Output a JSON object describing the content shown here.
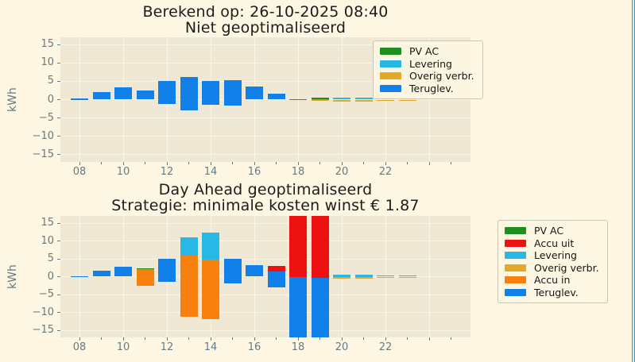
{
  "colors": {
    "figure_bg": "#fdf6e3",
    "axes_bg": "#eee8d5",
    "grid": "#fbf5e4",
    "tick_text": "#657b83",
    "title_text": "#1c1c1c",
    "window_border": "#4b93ad",
    "pv_ac": "#1e8e1e",
    "accu_uit": "#ee1111",
    "levering": "#29b8e6",
    "overig_verbr": "#e4a727",
    "accu_in": "#f8800f",
    "teruglev": "#1180e8"
  },
  "chart_data": [
    {
      "type": "bar",
      "title": "Berekend op: 26-10-2025 08:40",
      "subtitle": "Niet geoptimaliseerd",
      "ylabel": "kWh",
      "ylim": [
        -17,
        17
      ],
      "yticks": [
        "15",
        "10",
        "5",
        "0",
        "−5",
        "−10",
        "−15"
      ],
      "xtick_labels": [
        "08",
        "10",
        "12",
        "14",
        "16",
        "18",
        "20",
        "22"
      ],
      "grid": true,
      "legend_position": "upper-right-inside",
      "legend": [
        {
          "name": "PV AC",
          "color": "#1e8e1e"
        },
        {
          "name": "Levering",
          "color": "#29b8e6"
        },
        {
          "name": "Overig verbr.",
          "color": "#e4a727"
        },
        {
          "name": "Teruglev.",
          "color": "#1180e8"
        }
      ],
      "bars": [
        {
          "hour": 8,
          "segments": [
            [
              "Teruglev.",
              0,
              0.25
            ]
          ]
        },
        {
          "hour": 9,
          "segments": [
            [
              "Teruglev.",
              0,
              2.0
            ]
          ]
        },
        {
          "hour": 10,
          "segments": [
            [
              "Teruglev.",
              0,
              3.3
            ]
          ]
        },
        {
          "hour": 11,
          "segments": [
            [
              "Teruglev.",
              0,
              2.5
            ]
          ]
        },
        {
          "hour": 12,
          "segments": [
            [
              "Teruglev.",
              -1.3,
              5.0
            ]
          ]
        },
        {
          "hour": 13,
          "segments": [
            [
              "Teruglev.",
              -3.0,
              6.1
            ]
          ]
        },
        {
          "hour": 14,
          "segments": [
            [
              "Teruglev.",
              -1.5,
              5.0
            ]
          ]
        },
        {
          "hour": 15,
          "segments": [
            [
              "Teruglev.",
              -1.7,
              5.3
            ]
          ]
        },
        {
          "hour": 16,
          "segments": [
            [
              "Teruglev.",
              0,
              3.5
            ]
          ]
        },
        {
          "hour": 17,
          "segments": [
            [
              "Teruglev.",
              0,
              1.6
            ]
          ]
        },
        {
          "hour": 18,
          "segments": [
            [
              "Teruglev.",
              0,
              0.12
            ]
          ]
        },
        {
          "hour": 19,
          "segments": [
            [
              "Levering",
              0,
              0.3
            ],
            [
              "PV AC",
              0.3,
              0.5
            ],
            [
              "Overig verbr.",
              -0.2,
              0
            ]
          ]
        },
        {
          "hour": 20,
          "segments": [
            [
              "Levering",
              0,
              0.55
            ],
            [
              "Overig verbr.",
              -0.6,
              0
            ]
          ]
        },
        {
          "hour": 21,
          "segments": [
            [
              "Levering",
              0,
              0.55
            ],
            [
              "Overig verbr.",
              -0.6,
              0
            ]
          ]
        },
        {
          "hour": 22,
          "segments": [
            [
              "Levering",
              0,
              0.4
            ],
            [
              "Overig verbr.",
              -0.3,
              0
            ]
          ]
        },
        {
          "hour": 23,
          "segments": [
            [
              "Levering",
              0,
              0.35
            ],
            [
              "Overig verbr.",
              -0.3,
              0
            ]
          ]
        }
      ]
    },
    {
      "type": "bar",
      "title": "Day Ahead geoptimaliseerd",
      "subtitle": "Strategie: minimale kosten winst € 1.87",
      "ylabel": "kWh",
      "ylim": [
        -17,
        17
      ],
      "yticks": [
        "15",
        "10",
        "5",
        "0",
        "−5",
        "−10",
        "−15"
      ],
      "xtick_labels": [
        "08",
        "10",
        "12",
        "14",
        "16",
        "18",
        "20",
        "22"
      ],
      "grid": true,
      "legend_position": "right-outside",
      "legend": [
        {
          "name": "PV AC",
          "color": "#1e8e1e"
        },
        {
          "name": "Accu uit",
          "color": "#ee1111"
        },
        {
          "name": "Levering",
          "color": "#29b8e6"
        },
        {
          "name": "Overig verbr.",
          "color": "#e4a727"
        },
        {
          "name": "Accu in",
          "color": "#f8800f"
        },
        {
          "name": "Teruglev.",
          "color": "#1180e8"
        }
      ],
      "bars": [
        {
          "hour": 8,
          "segments": [
            [
              "Teruglev.",
              0,
              0.2
            ]
          ]
        },
        {
          "hour": 9,
          "segments": [
            [
              "Teruglev.",
              0,
              1.7
            ]
          ]
        },
        {
          "hour": 10,
          "segments": [
            [
              "Teruglev.",
              0,
              2.8
            ]
          ]
        },
        {
          "hour": 11,
          "segments": [
            [
              "Accu in",
              -2.5,
              2.2
            ],
            [
              "PV AC",
              2.2,
              2.4
            ]
          ]
        },
        {
          "hour": 12,
          "segments": [
            [
              "Teruglev.",
              -1.5,
              5.0
            ]
          ]
        },
        {
          "hour": 13,
          "segments": [
            [
              "Accu in",
              -11.2,
              5.9
            ],
            [
              "Levering",
              5.9,
              11.0
            ]
          ]
        },
        {
          "hour": 14,
          "segments": [
            [
              "Accu in",
              -12.0,
              4.7
            ],
            [
              "Levering",
              4.7,
              12.3
            ]
          ]
        },
        {
          "hour": 15,
          "segments": [
            [
              "Teruglev.",
              -1.8,
              5.1
            ]
          ]
        },
        {
          "hour": 16,
          "segments": [
            [
              "Teruglev.",
              0,
              3.3
            ]
          ]
        },
        {
          "hour": 17,
          "segments": [
            [
              "Teruglev.",
              -3.0,
              1.5
            ],
            [
              "Accu uit",
              1.5,
              3.0
            ]
          ]
        },
        {
          "hour": 18,
          "segments": [
            [
              "Teruglev.",
              -17,
              0
            ],
            [
              "Accu uit",
              0,
              17
            ]
          ]
        },
        {
          "hour": 19,
          "segments": [
            [
              "Teruglev.",
              -17,
              -0.3
            ],
            [
              "Accu uit",
              -0.3,
              17
            ]
          ]
        },
        {
          "hour": 20,
          "segments": [
            [
              "Levering",
              0,
              0.5
            ],
            [
              "Overig verbr.",
              -0.45,
              0
            ]
          ]
        },
        {
          "hour": 21,
          "segments": [
            [
              "Levering",
              0,
              0.5
            ],
            [
              "Overig verbr.",
              -0.5,
              0
            ]
          ]
        },
        {
          "hour": 22,
          "segments": [
            [
              "Levering",
              0,
              0.35
            ],
            [
              "Overig verbr.",
              -0.25,
              0
            ]
          ]
        },
        {
          "hour": 23,
          "segments": [
            [
              "Levering",
              0,
              0.35
            ],
            [
              "Overig verbr.",
              -0.3,
              0
            ]
          ]
        }
      ]
    }
  ]
}
